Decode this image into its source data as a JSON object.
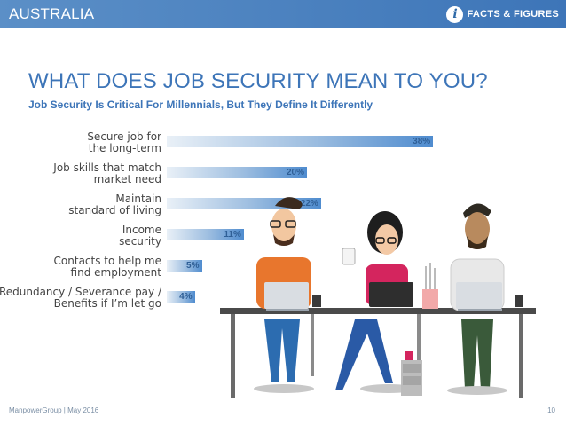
{
  "header": {
    "region": "AUSTRALIA",
    "badge_icon": "info-icon",
    "badge_glyph": "i",
    "badge_label": "FACTS & FIGURES"
  },
  "title": "WHAT DOES JOB SECURITY MEAN TO YOU?",
  "subtitle": "Job Security Is Critical For Millennials, But They Define It Differently",
  "chart_data": {
    "type": "bar",
    "orientation": "horizontal",
    "title": "WHAT DOES JOB SECURITY MEAN TO YOU?",
    "subtitle": "Job Security Is Critical For Millennials, But They Define It Differently",
    "xlabel": "",
    "ylabel": "",
    "xlim": [
      0,
      40
    ],
    "grid": false,
    "categories": [
      [
        "Secure job for",
        "the long-term"
      ],
      [
        "Job skills that match",
        "market need"
      ],
      [
        "Maintain",
        "standard of living"
      ],
      [
        "Income",
        "security"
      ],
      [
        "Contacts to help me",
        "find employment"
      ],
      [
        "Redundancy / Severance pay /",
        "Benefits if I’m let go"
      ]
    ],
    "values": [
      38,
      20,
      22,
      11,
      5,
      4
    ],
    "value_labels": [
      "38%",
      "20%",
      "22%",
      "11%",
      "5%",
      "4%"
    ],
    "colors": {
      "bar_start": "#e9f0f7",
      "bar_mid": "#9cbde0",
      "bar_end": "#4f8ccf",
      "value_text": "#2f5f96"
    }
  },
  "illustration": {
    "description_icon": "three-millennials-at-desk-illustration"
  },
  "footer": {
    "source": "ManpowerGroup  |  May 2016",
    "page": "10"
  },
  "colors": {
    "brand_blue": "#3d75b8",
    "header_bar": "#4a82c0"
  }
}
